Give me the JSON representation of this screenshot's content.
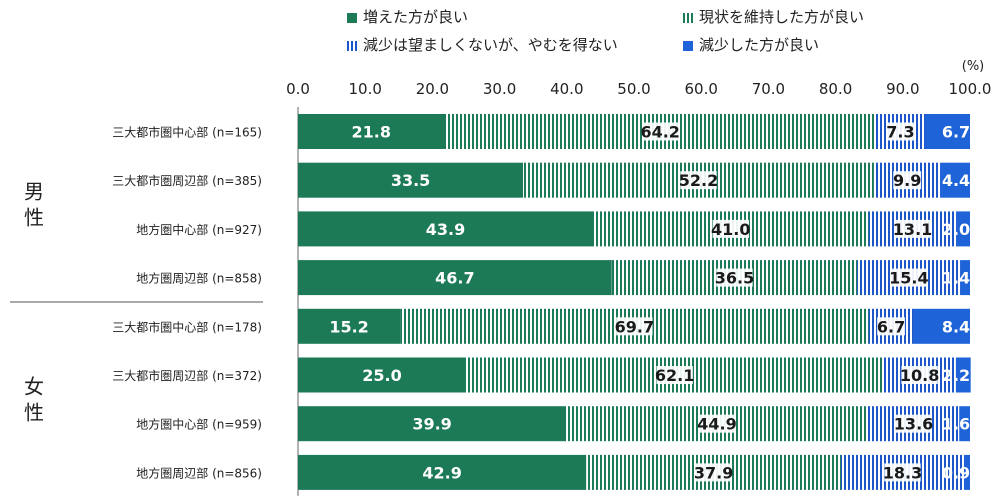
{
  "chart_data": {
    "type": "bar",
    "orientation": "horizontal",
    "stacked": true,
    "unit": "(%)",
    "xlim": [
      0,
      100
    ],
    "x_ticks": [
      "0.0",
      "10.0",
      "20.0",
      "30.0",
      "40.0",
      "50.0",
      "60.0",
      "70.0",
      "80.0",
      "90.0",
      "100.0"
    ],
    "groups": [
      {
        "label": "男\n性",
        "rows": [
          0,
          1,
          2,
          3
        ]
      },
      {
        "label": "女\n性",
        "rows": [
          4,
          5,
          6,
          7
        ]
      }
    ],
    "categories": [
      "三大都市圏中心部 (n=165)",
      "三大都市圏周辺部 (n=385)",
      "地方圏中心部 (n=927)",
      "地方圏周辺部 (n=858)",
      "三大都市圏中心部 (n=178)",
      "三大都市圏周辺部 (n=372)",
      "地方圏中心部 (n=959)",
      "地方圏周辺部 (n=856)"
    ],
    "series": [
      {
        "name": "増えた方が良い",
        "color": "#1d7a57",
        "pattern": "solid",
        "values": [
          21.8,
          33.5,
          43.9,
          46.7,
          15.2,
          25.0,
          39.9,
          42.9
        ]
      },
      {
        "name": "現状を維持した方が良い",
        "color": "#1d7a57",
        "pattern": "stripes",
        "values": [
          64.2,
          52.2,
          41.0,
          36.5,
          69.7,
          62.1,
          44.9,
          37.9
        ]
      },
      {
        "name": "減少は望ましくないが、やむを得ない",
        "color": "#1d56c8",
        "pattern": "stripes",
        "values": [
          7.3,
          9.9,
          13.1,
          15.4,
          6.7,
          10.8,
          13.6,
          18.3
        ]
      },
      {
        "name": "減少した方が良い",
        "color": "#1e63d8",
        "pattern": "solid",
        "values": [
          6.7,
          4.4,
          2.0,
          1.4,
          8.4,
          2.2,
          1.6,
          0.9
        ]
      }
    ],
    "grid": false,
    "legend_position": "top"
  }
}
